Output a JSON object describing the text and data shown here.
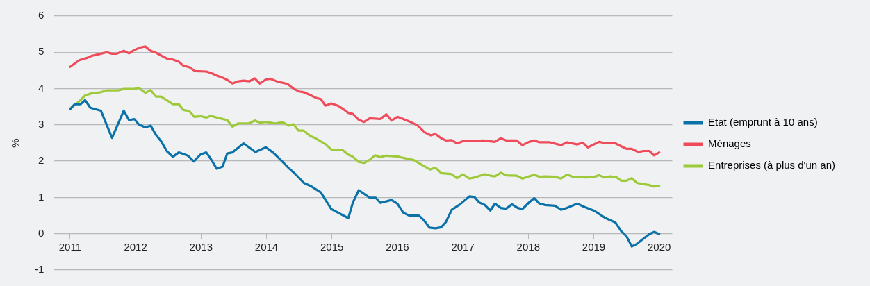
{
  "chart_data": {
    "type": "line",
    "ylabel": "%",
    "xlim": [
      2010.75,
      2020.2
    ],
    "xticks": [
      2011,
      2012,
      2013,
      2014,
      2015,
      2016,
      2017,
      2018,
      2019,
      2020
    ],
    "ylim": [
      -1,
      6
    ],
    "yticks": [
      -1,
      0,
      1,
      2,
      3,
      4,
      5,
      6
    ],
    "grid": "y",
    "legend": "right",
    "marker": "none",
    "line_style": "solid",
    "series": [
      {
        "name": "Etat (emprunt à 10 ans)",
        "color": "#0a72a8",
        "x": [
          2011.0,
          2011.07,
          2011.16,
          2011.23,
          2011.31,
          2011.47,
          2011.64,
          2011.82,
          2011.9,
          2011.98,
          2012.05,
          2012.15,
          2012.23,
          2012.31,
          2012.39,
          2012.48,
          2012.57,
          2012.66,
          2012.8,
          2012.89,
          2012.99,
          2013.08,
          2013.15,
          2013.24,
          2013.33,
          2013.4,
          2013.48,
          2013.65,
          2013.83,
          2013.99,
          2014.1,
          2014.23,
          2014.34,
          2014.45,
          2014.57,
          2014.67,
          2014.83,
          2014.99,
          2015.25,
          2015.32,
          2015.41,
          2015.58,
          2015.67,
          2015.74,
          2015.91,
          2016.0,
          2016.09,
          2016.18,
          2016.33,
          2016.4,
          2016.49,
          2016.58,
          2016.67,
          2016.74,
          2016.83,
          2016.95,
          2017.1,
          2017.18,
          2017.25,
          2017.33,
          2017.42,
          2017.49,
          2017.58,
          2017.66,
          2017.75,
          2017.84,
          2017.91,
          2018.01,
          2018.09,
          2018.17,
          2018.26,
          2018.41,
          2018.5,
          2018.59,
          2018.75,
          2018.84,
          2019.01,
          2019.17,
          2019.33,
          2019.42,
          2019.5,
          2019.58,
          2019.66,
          2019.75,
          2019.85,
          2019.92,
          2020.0
        ],
        "values": [
          3.43,
          3.57,
          3.57,
          3.68,
          3.47,
          3.39,
          2.64,
          3.39,
          3.13,
          3.16,
          3.01,
          2.93,
          2.98,
          2.73,
          2.55,
          2.27,
          2.12,
          2.24,
          2.15,
          1.99,
          2.18,
          2.24,
          2.06,
          1.79,
          1.85,
          2.21,
          2.24,
          2.49,
          2.25,
          2.38,
          2.24,
          2.01,
          1.81,
          1.63,
          1.4,
          1.32,
          1.14,
          0.68,
          0.43,
          0.86,
          1.2,
          0.99,
          0.99,
          0.85,
          0.93,
          0.83,
          0.58,
          0.5,
          0.5,
          0.38,
          0.17,
          0.15,
          0.18,
          0.32,
          0.66,
          0.8,
          1.03,
          1.01,
          0.86,
          0.8,
          0.64,
          0.83,
          0.71,
          0.69,
          0.81,
          0.71,
          0.68,
          0.86,
          0.98,
          0.83,
          0.79,
          0.77,
          0.66,
          0.71,
          0.83,
          0.75,
          0.63,
          0.44,
          0.31,
          0.07,
          -0.07,
          -0.35,
          -0.28,
          -0.15,
          -0.01,
          0.05,
          -0.01
        ]
      },
      {
        "name": "Ménages",
        "color": "#ef4b5b",
        "x": [
          2011.0,
          2011.14,
          2011.25,
          2011.33,
          2011.47,
          2011.56,
          2011.64,
          2011.71,
          2011.82,
          2011.9,
          2011.98,
          2012.07,
          2012.15,
          2012.23,
          2012.31,
          2012.4,
          2012.49,
          2012.57,
          2012.66,
          2012.73,
          2012.82,
          2012.91,
          2013.08,
          2013.15,
          2013.24,
          2013.33,
          2013.4,
          2013.48,
          2013.57,
          2013.65,
          2013.74,
          2013.82,
          2013.9,
          2013.99,
          2014.06,
          2014.17,
          2014.32,
          2014.41,
          2014.5,
          2014.57,
          2014.67,
          2014.76,
          2014.83,
          2014.9,
          2014.99,
          2015.09,
          2015.16,
          2015.25,
          2015.32,
          2015.41,
          2015.49,
          2015.58,
          2015.74,
          2015.83,
          2015.91,
          2016.0,
          2016.09,
          2016.2,
          2016.31,
          2016.42,
          2016.51,
          2016.58,
          2016.67,
          2016.74,
          2016.83,
          2016.91,
          2017.0,
          2017.16,
          2017.31,
          2017.49,
          2017.58,
          2017.66,
          2017.82,
          2017.91,
          2018.01,
          2018.09,
          2018.17,
          2018.33,
          2018.5,
          2018.59,
          2018.75,
          2018.83,
          2018.91,
          2019.08,
          2019.17,
          2019.33,
          2019.42,
          2019.5,
          2019.58,
          2019.68,
          2019.76,
          2019.85,
          2019.92,
          2020.0
        ],
        "values": [
          4.6,
          4.78,
          4.84,
          4.9,
          4.96,
          5.0,
          4.96,
          4.96,
          5.04,
          4.97,
          5.06,
          5.13,
          5.16,
          5.04,
          4.99,
          4.9,
          4.82,
          4.8,
          4.74,
          4.63,
          4.59,
          4.48,
          4.47,
          4.43,
          4.36,
          4.3,
          4.24,
          4.14,
          4.2,
          4.22,
          4.2,
          4.28,
          4.14,
          4.25,
          4.27,
          4.19,
          4.13,
          4.0,
          3.92,
          3.9,
          3.82,
          3.74,
          3.71,
          3.53,
          3.59,
          3.53,
          3.45,
          3.33,
          3.3,
          3.14,
          3.08,
          3.18,
          3.16,
          3.29,
          3.12,
          3.22,
          3.16,
          3.08,
          2.98,
          2.79,
          2.71,
          2.75,
          2.63,
          2.57,
          2.58,
          2.49,
          2.55,
          2.55,
          2.57,
          2.53,
          2.63,
          2.57,
          2.57,
          2.44,
          2.53,
          2.57,
          2.52,
          2.52,
          2.44,
          2.52,
          2.46,
          2.51,
          2.38,
          2.53,
          2.5,
          2.49,
          2.41,
          2.34,
          2.34,
          2.25,
          2.28,
          2.28,
          2.16,
          2.24
        ]
      },
      {
        "name": "Entreprises (à plus d'un an)",
        "color": "#9dc93b",
        "x": [
          2011.0,
          2011.14,
          2011.23,
          2011.33,
          2011.47,
          2011.56,
          2011.73,
          2011.82,
          2011.98,
          2012.05,
          2012.15,
          2012.23,
          2012.31,
          2012.39,
          2012.57,
          2012.66,
          2012.73,
          2012.82,
          2012.9,
          2012.99,
          2013.08,
          2013.15,
          2013.24,
          2013.4,
          2013.48,
          2013.57,
          2013.74,
          2013.82,
          2013.9,
          2013.99,
          2014.13,
          2014.25,
          2014.34,
          2014.41,
          2014.49,
          2014.57,
          2014.67,
          2014.74,
          2014.9,
          2014.99,
          2015.16,
          2015.25,
          2015.32,
          2015.41,
          2015.49,
          2015.58,
          2015.66,
          2015.74,
          2015.83,
          2016.0,
          2016.09,
          2016.25,
          2016.4,
          2016.5,
          2016.58,
          2016.67,
          2016.83,
          2016.91,
          2017.0,
          2017.1,
          2017.18,
          2017.33,
          2017.42,
          2017.49,
          2017.58,
          2017.66,
          2017.82,
          2017.91,
          2018.01,
          2018.09,
          2018.17,
          2018.26,
          2018.41,
          2018.5,
          2018.59,
          2018.68,
          2018.88,
          2019.01,
          2019.08,
          2019.17,
          2019.25,
          2019.35,
          2019.42,
          2019.5,
          2019.58,
          2019.66,
          2019.75,
          2019.85,
          2019.92,
          2020.0
        ],
        "values": [
          3.44,
          3.65,
          3.81,
          3.87,
          3.9,
          3.95,
          3.95,
          3.99,
          3.99,
          4.02,
          3.88,
          3.96,
          3.78,
          3.78,
          3.57,
          3.57,
          3.41,
          3.38,
          3.22,
          3.24,
          3.2,
          3.25,
          3.2,
          3.13,
          2.95,
          3.04,
          3.04,
          3.12,
          3.06,
          3.08,
          3.04,
          3.07,
          2.98,
          3.02,
          2.84,
          2.84,
          2.69,
          2.64,
          2.47,
          2.32,
          2.31,
          2.18,
          2.12,
          1.98,
          1.95,
          2.04,
          2.16,
          2.11,
          2.15,
          2.13,
          2.09,
          2.03,
          1.87,
          1.77,
          1.82,
          1.67,
          1.64,
          1.53,
          1.64,
          1.52,
          1.55,
          1.64,
          1.6,
          1.58,
          1.68,
          1.61,
          1.6,
          1.52,
          1.58,
          1.62,
          1.57,
          1.58,
          1.57,
          1.52,
          1.63,
          1.57,
          1.55,
          1.57,
          1.61,
          1.55,
          1.58,
          1.55,
          1.46,
          1.46,
          1.53,
          1.4,
          1.37,
          1.34,
          1.3,
          1.32
        ]
      }
    ]
  }
}
